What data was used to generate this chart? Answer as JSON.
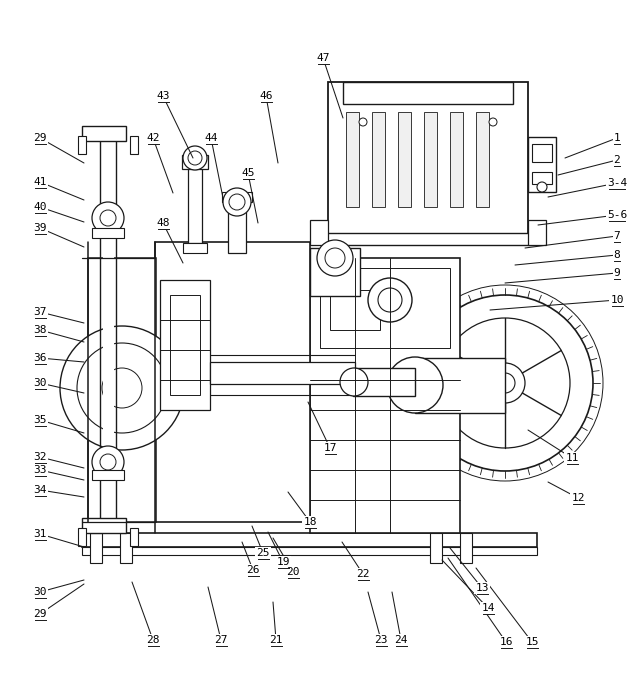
{
  "bg_color": "#ffffff",
  "line_color": "#1a1a1a",
  "label_color": "#000000",
  "figsize": [
    6.41,
    6.73
  ],
  "dpi": 100,
  "annotations": [
    [
      "1",
      617,
      138,
      565,
      158
    ],
    [
      "2",
      617,
      160,
      558,
      175
    ],
    [
      "3-4",
      617,
      183,
      548,
      197
    ],
    [
      "5-6",
      617,
      215,
      538,
      225
    ],
    [
      "7",
      617,
      236,
      525,
      248
    ],
    [
      "8",
      617,
      255,
      515,
      265
    ],
    [
      "9",
      617,
      273,
      505,
      283
    ],
    [
      "10",
      617,
      300,
      490,
      310
    ],
    [
      "11",
      572,
      458,
      528,
      430
    ],
    [
      "12",
      578,
      498,
      548,
      482
    ],
    [
      "13",
      482,
      588,
      450,
      548
    ],
    [
      "14",
      488,
      608,
      442,
      560
    ],
    [
      "15",
      532,
      642,
      476,
      568
    ],
    [
      "16",
      506,
      642,
      448,
      558
    ],
    [
      "17",
      330,
      448,
      308,
      402
    ],
    [
      "18",
      310,
      522,
      288,
      492
    ],
    [
      "19",
      283,
      562,
      268,
      532
    ],
    [
      "20",
      293,
      572,
      273,
      538
    ],
    [
      "21",
      276,
      640,
      273,
      602
    ],
    [
      "22",
      363,
      574,
      342,
      542
    ],
    [
      "23",
      381,
      640,
      368,
      592
    ],
    [
      "24",
      401,
      640,
      392,
      592
    ],
    [
      "25",
      263,
      553,
      252,
      526
    ],
    [
      "26",
      253,
      570,
      242,
      542
    ],
    [
      "27",
      221,
      640,
      208,
      587
    ],
    [
      "28",
      153,
      640,
      132,
      582
    ],
    [
      "29",
      40,
      138,
      84,
      163
    ],
    [
      "29",
      40,
      614,
      84,
      584
    ],
    [
      "30",
      40,
      383,
      84,
      393
    ],
    [
      "30",
      40,
      592,
      84,
      580
    ],
    [
      "31",
      40,
      534,
      84,
      547
    ],
    [
      "32",
      40,
      457,
      84,
      468
    ],
    [
      "33",
      40,
      470,
      84,
      480
    ],
    [
      "34",
      40,
      490,
      84,
      497
    ],
    [
      "35",
      40,
      420,
      84,
      433
    ],
    [
      "36",
      40,
      358,
      84,
      362
    ],
    [
      "37",
      40,
      312,
      84,
      323
    ],
    [
      "38",
      40,
      330,
      84,
      342
    ],
    [
      "39",
      40,
      228,
      84,
      247
    ],
    [
      "40",
      40,
      207,
      84,
      222
    ],
    [
      "41",
      40,
      182,
      84,
      200
    ],
    [
      "42",
      153,
      138,
      173,
      193
    ],
    [
      "43",
      163,
      96,
      193,
      158
    ],
    [
      "44",
      211,
      138,
      223,
      198
    ],
    [
      "45",
      248,
      173,
      258,
      223
    ],
    [
      "46",
      266,
      96,
      278,
      163
    ],
    [
      "47",
      323,
      58,
      343,
      118
    ],
    [
      "48",
      163,
      223,
      183,
      263
    ]
  ]
}
